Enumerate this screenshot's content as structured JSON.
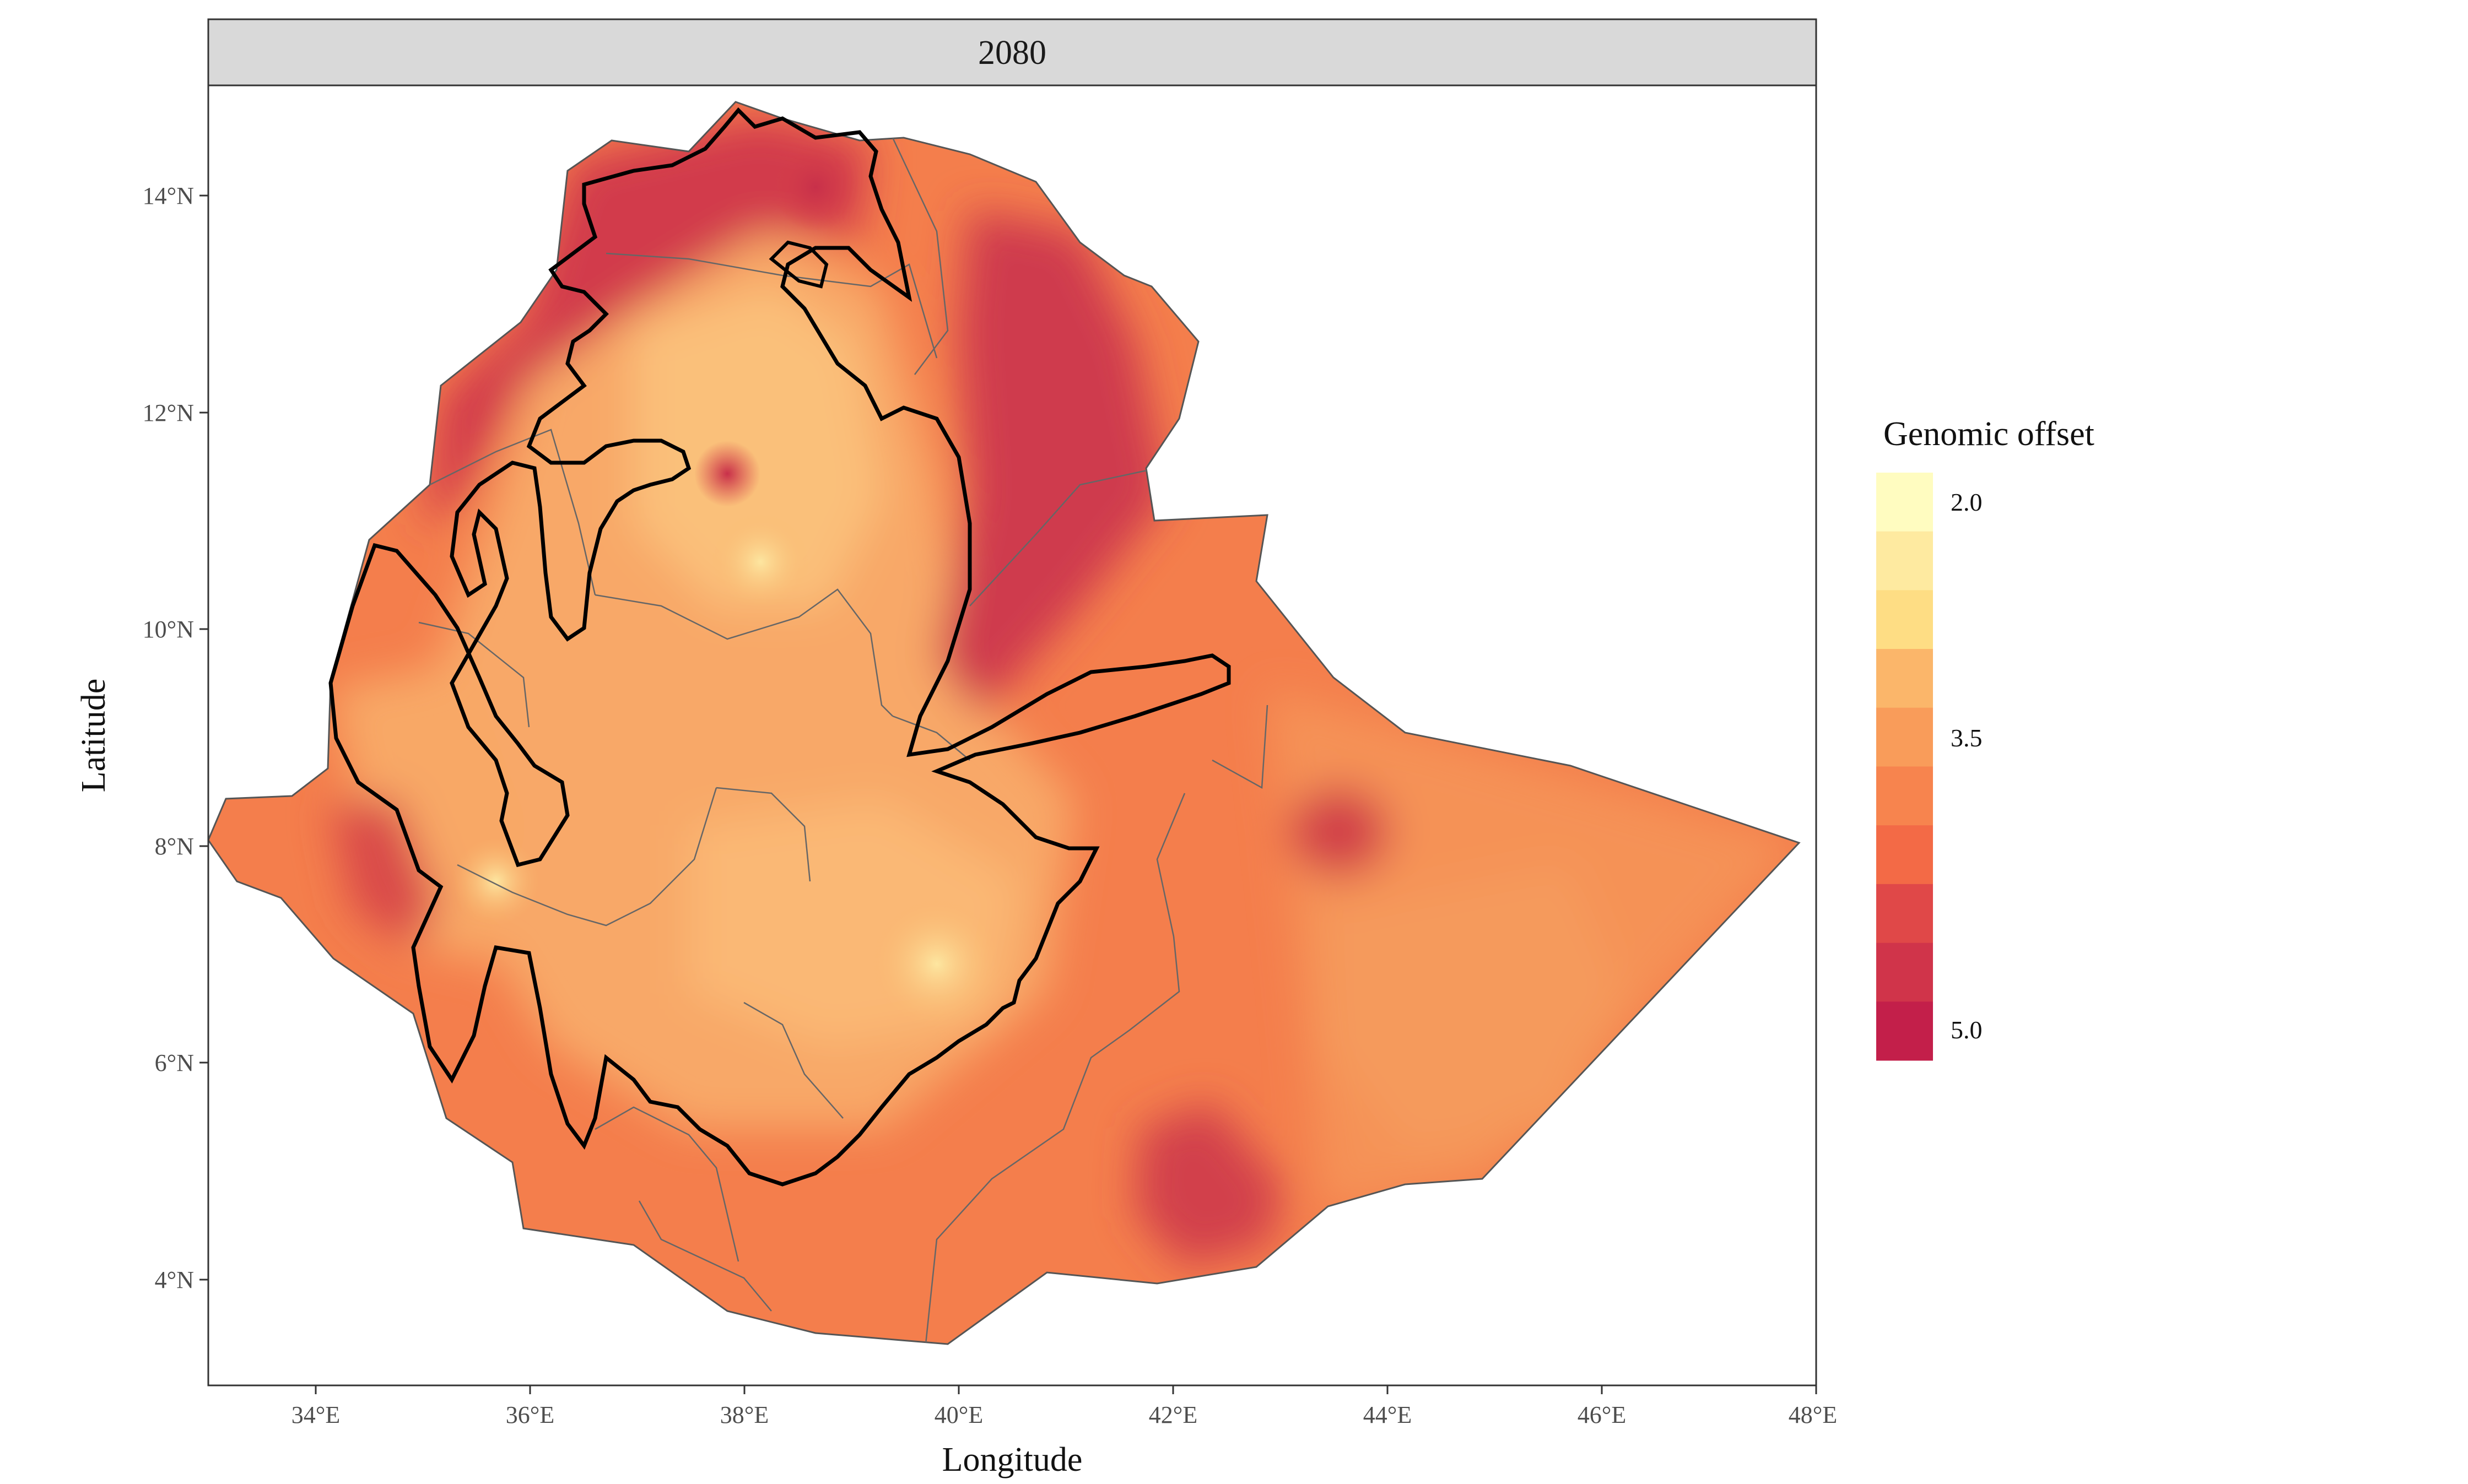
{
  "panel": {
    "strip_label": "2080"
  },
  "axes": {
    "x_title": "Longitude",
    "y_title": "Latitude",
    "x_ticks": [
      "34°E",
      "36°E",
      "38°E",
      "40°E",
      "42°E",
      "44°E",
      "46°E",
      "48°E"
    ],
    "y_ticks": [
      "4°N",
      "6°N",
      "8°N",
      "10°N",
      "12°N",
      "14°N"
    ],
    "x_range": [
      33.0,
      48.0
    ],
    "y_range": [
      3.0,
      15.0
    ]
  },
  "legend": {
    "title": "Genomic offset",
    "labels": [
      "2.0",
      "3.5",
      "5.0"
    ],
    "colors": [
      "#fffcc0",
      "#feeaa0",
      "#fedd84",
      "#fbb66a",
      "#f99c5a",
      "#f7844e",
      "#f36a46",
      "#e04848",
      "#d0344a",
      "#c31f4a"
    ]
  },
  "colors": {
    "low": "#fbe6a0",
    "mid": "#f6a05e",
    "high": "#d13b4d",
    "country_outline": "#555555",
    "range_outline": "#000000",
    "strip_bg": "#d9d9d9"
  }
}
